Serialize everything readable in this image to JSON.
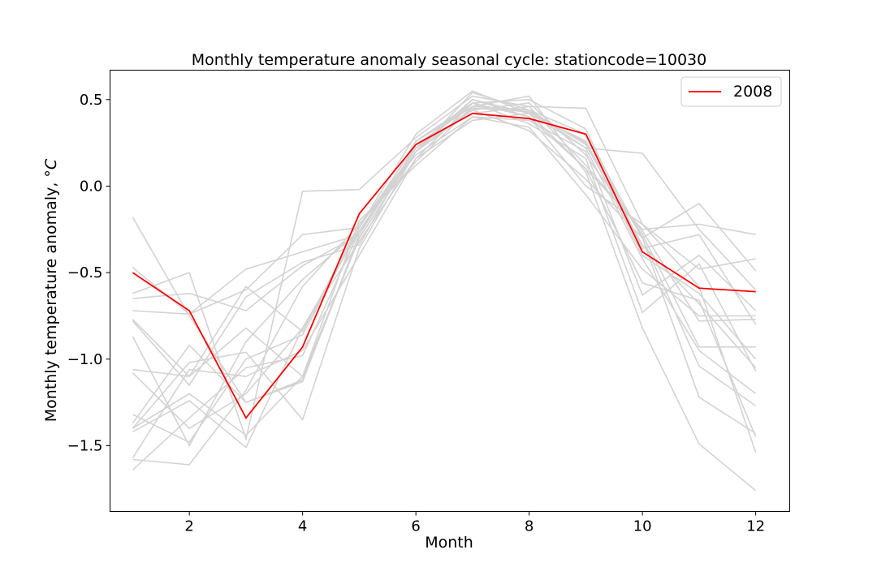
{
  "chart_data": {
    "type": "line",
    "title": "Monthly temperature anomaly seasonal cycle: stationcode=10030",
    "xlabel": "Month",
    "ylabel": "Monthly temperature anomaly, °",
    "ylabel_unit": "C",
    "xlim": [
      0.6,
      12.6
    ],
    "ylim": [
      -1.88,
      0.67
    ],
    "xticks": [
      2,
      4,
      6,
      8,
      10,
      12
    ],
    "yticks": [
      0.5,
      0.0,
      -0.5,
      -1.0,
      -1.5
    ],
    "ytick_labels": [
      "0.5",
      "0.0",
      "−0.5",
      "−1.0",
      "−1.5"
    ],
    "grid": false,
    "legend_position": "top-right",
    "x": [
      1,
      2,
      3,
      4,
      5,
      6,
      7,
      8,
      9,
      10,
      11,
      12
    ],
    "background_color": "#d3d3d3",
    "highlight_color": "#ff0000",
    "highlight": {
      "name": "2008",
      "values": [
        -0.5,
        -0.72,
        -1.34,
        -0.93,
        -0.16,
        0.24,
        0.42,
        0.39,
        0.3,
        -0.38,
        -0.59,
        -0.61
      ]
    },
    "background_series": [
      {
        "values": [
          -0.18,
          -0.75,
          -1.25,
          -1.12,
          -0.3,
          0.2,
          0.45,
          0.43,
          0.25,
          -0.3,
          -0.1,
          -0.49
        ]
      },
      {
        "values": [
          -0.47,
          -0.74,
          -0.48,
          -0.38,
          -0.28,
          0.22,
          0.5,
          0.4,
          0.1,
          -0.25,
          -0.22,
          -0.28
        ]
      },
      {
        "values": [
          -0.62,
          -0.5,
          -1.46,
          -0.03,
          -0.02,
          0.28,
          0.52,
          0.46,
          0.45,
          -0.22,
          -0.48,
          -0.42
        ]
      },
      {
        "values": [
          -0.72,
          -0.74,
          -0.6,
          -0.28,
          -0.24,
          0.3,
          0.55,
          0.42,
          0.22,
          0.19,
          -0.25,
          -0.6
        ]
      },
      {
        "values": [
          -0.65,
          -0.62,
          -0.72,
          -0.46,
          -0.28,
          0.26,
          0.48,
          0.5,
          0.33,
          -0.36,
          -0.28,
          -0.8
        ]
      },
      {
        "values": [
          -0.77,
          -1.1,
          -0.58,
          -0.84,
          -0.22,
          0.18,
          0.4,
          0.38,
          0.2,
          -0.63,
          -0.4,
          -0.72
        ]
      },
      {
        "values": [
          -0.78,
          -1.15,
          -0.64,
          -0.44,
          -0.34,
          0.24,
          0.46,
          0.44,
          0.24,
          -0.34,
          -0.68,
          -1.05
        ]
      },
      {
        "values": [
          -0.87,
          -1.5,
          -0.9,
          -0.54,
          -0.26,
          0.22,
          0.44,
          0.48,
          0.18,
          -0.28,
          -0.93,
          -0.93
        ]
      },
      {
        "values": [
          -1.06,
          -1.1,
          -0.82,
          -1.1,
          -0.3,
          0.2,
          0.5,
          0.42,
          0.26,
          -0.4,
          -0.62,
          -1.0
        ]
      },
      {
        "values": [
          -1.08,
          -1.4,
          -1.2,
          -0.82,
          -0.32,
          0.16,
          0.48,
          0.36,
          0.16,
          -0.73,
          -0.45,
          -1.07
        ]
      },
      {
        "values": [
          -1.32,
          -1.48,
          -1.0,
          -0.86,
          -0.24,
          0.24,
          0.42,
          0.46,
          0.12,
          -0.26,
          -0.78,
          -0.77
        ]
      },
      {
        "values": [
          -1.37,
          -0.92,
          -1.25,
          -1.13,
          -0.28,
          0.26,
          0.46,
          0.44,
          0.22,
          -0.42,
          -0.95,
          -1.2
        ]
      },
      {
        "values": [
          -1.4,
          -1.02,
          -0.96,
          -1.35,
          -0.36,
          0.2,
          0.54,
          0.44,
          0.3,
          -0.3,
          -1.04,
          -1.27
        ]
      },
      {
        "values": [
          -1.4,
          -1.2,
          -1.44,
          -1.1,
          -0.2,
          0.12,
          0.4,
          0.34,
          -0.05,
          -0.48,
          -0.75,
          -0.75
        ]
      },
      {
        "values": [
          -1.42,
          -1.24,
          -1.51,
          -0.82,
          -0.26,
          0.2,
          0.44,
          0.32,
          0.04,
          -0.3,
          -1.22,
          -1.43
        ]
      },
      {
        "values": [
          -1.57,
          -1.06,
          -1.1,
          -0.95,
          -0.4,
          0.16,
          0.38,
          0.42,
          0.1,
          -0.56,
          -0.66,
          -1.45
        ]
      },
      {
        "values": [
          -1.58,
          -1.61,
          -1.18,
          -0.58,
          -0.22,
          0.14,
          0.46,
          0.52,
          0.08,
          -0.82,
          -1.49,
          -1.76
        ]
      },
      {
        "values": [
          -1.64,
          -1.34,
          -1.05,
          -0.98,
          -0.26,
          0.22,
          0.48,
          0.4,
          0.0,
          -0.22,
          -0.58,
          -1.54
        ]
      }
    ]
  }
}
